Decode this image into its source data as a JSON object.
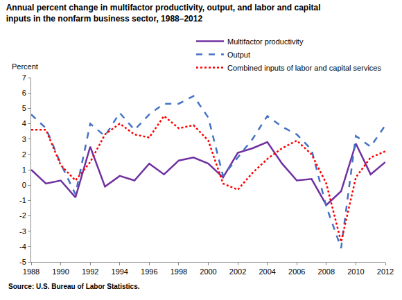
{
  "chart_data": {
    "type": "line",
    "title": "Annual percent change in multifactor productivity, output, and labor and capital inputs in the nonfarm business sector, 1988–2012",
    "ylabel": "Percent",
    "source": "Source: U.S. Bureau of Labor Statistics.",
    "x": [
      1988,
      1989,
      1990,
      1991,
      1992,
      1993,
      1994,
      1995,
      1996,
      1997,
      1998,
      1999,
      2000,
      2001,
      2002,
      2003,
      2004,
      2005,
      2006,
      2007,
      2008,
      2009,
      2010,
      2011,
      2012
    ],
    "series": [
      {
        "name": "Multifactor productivity",
        "color": "#7030a0",
        "line_style": "solid",
        "values": [
          1.0,
          0.1,
          0.3,
          -0.8,
          2.5,
          -0.1,
          0.6,
          0.3,
          1.4,
          0.7,
          1.6,
          1.8,
          1.4,
          0.5,
          2.1,
          2.4,
          2.8,
          1.4,
          0.3,
          0.4,
          -1.3,
          -0.4,
          2.7,
          0.7,
          1.5
        ]
      },
      {
        "name": "Output",
        "color": "#4472c4",
        "line_style": "dash",
        "values": [
          4.6,
          3.7,
          1.4,
          -0.6,
          4.0,
          3.2,
          4.7,
          3.6,
          4.6,
          5.3,
          5.3,
          5.8,
          4.4,
          0.6,
          1.8,
          3.0,
          4.5,
          3.8,
          3.3,
          2.3,
          -1.4,
          -4.1,
          3.2,
          2.5,
          3.9
        ]
      },
      {
        "name": "Combined inputs of labor and capital services",
        "color": "#ff0000",
        "line_style": "dot",
        "values": [
          3.6,
          3.6,
          1.3,
          0.3,
          1.5,
          3.3,
          4.0,
          3.3,
          3.1,
          4.5,
          3.7,
          3.9,
          2.9,
          0.1,
          -0.3,
          0.8,
          1.7,
          2.4,
          2.9,
          2.0,
          0.1,
          -3.7,
          0.5,
          1.8,
          2.2
        ]
      }
    ],
    "xlim": [
      1988,
      2012
    ],
    "xticks": [
      1988,
      1990,
      1992,
      1994,
      1996,
      1998,
      2000,
      2002,
      2004,
      2006,
      2008,
      2010,
      2012
    ],
    "ylim": [
      -5,
      7
    ],
    "yticks": [
      -5,
      -4,
      -3,
      -2,
      -1,
      0,
      1,
      2,
      3,
      4,
      5,
      6,
      7
    ],
    "grid": false,
    "legend": "upper right"
  }
}
